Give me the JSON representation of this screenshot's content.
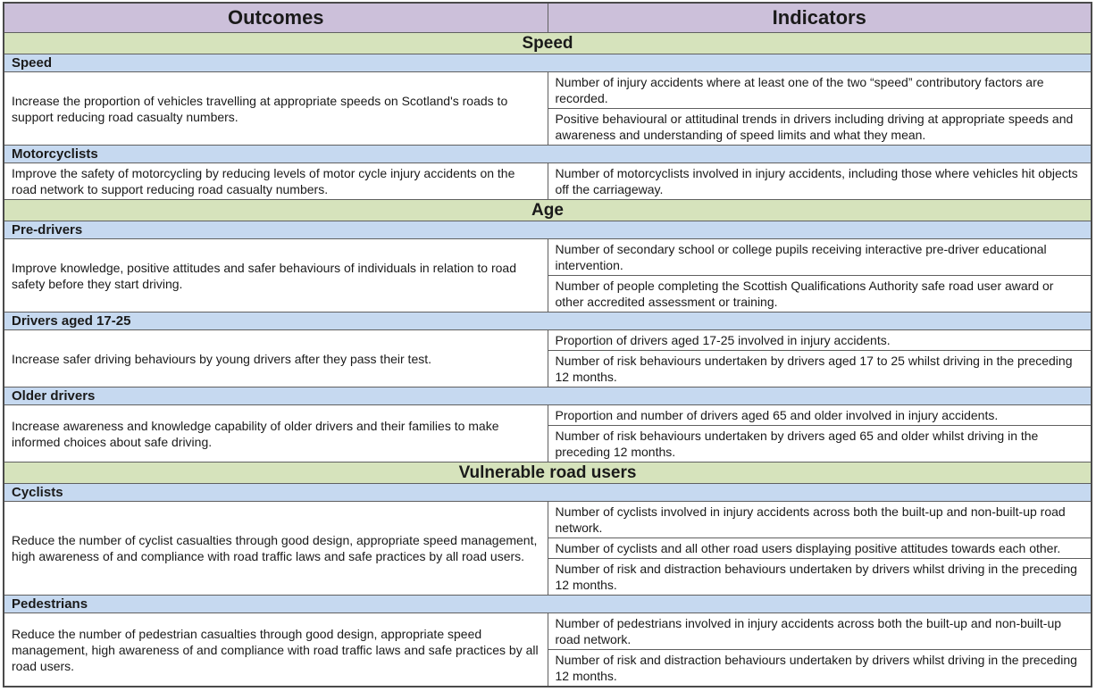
{
  "table": {
    "columns": [
      "Outcomes",
      "Indicators"
    ],
    "colors": {
      "header_bg": "#CCC0DA",
      "section_bg": "#D6E3BC",
      "subheader_bg": "#C6D9F0",
      "border": "#606060",
      "outer_border": "#4a4a4a",
      "text": "#1a1a1a"
    },
    "sections": [
      {
        "title": "Speed",
        "groups": [
          {
            "subtitle": "Speed",
            "outcome": "Increase the proportion of vehicles travelling at appropriate speeds on Scotland's roads to support reducing road casualty numbers.",
            "indicators": [
              "Number of injury accidents where at least one of the two “speed” contributory factors are recorded.",
              "Positive behavioural or attitudinal trends in drivers including driving at appropriate speeds and awareness and understanding of speed limits and what they mean."
            ]
          },
          {
            "subtitle": "Motorcyclists",
            "outcome": "Improve the safety of motorcycling by reducing levels of motor cycle injury accidents on the road network to support reducing road casualty numbers.",
            "indicators": [
              "Number of motorcyclists involved in injury accidents, including those where vehicles hit objects off the carriageway."
            ]
          }
        ]
      },
      {
        "title": "Age",
        "groups": [
          {
            "subtitle": "Pre-drivers",
            "outcome": "Improve knowledge, positive attitudes and safer behaviours of individuals in relation to road safety before they start driving.",
            "indicators": [
              "Number of secondary school or college pupils receiving interactive pre-driver educational intervention.",
              "Number of people completing the Scottish Qualifications Authority safe road user award or other accredited assessment or training."
            ]
          },
          {
            "subtitle": "Drivers aged 17-25",
            "outcome": "Increase safer driving behaviours by young drivers after they pass their test.",
            "indicators": [
              "Proportion of drivers aged 17-25 involved in injury accidents.",
              "Number of risk behaviours undertaken by drivers aged 17 to 25 whilst driving in the preceding 12 months."
            ]
          },
          {
            "subtitle": "Older drivers",
            "outcome": "Increase awareness and knowledge capability of older drivers and their families to make informed choices about safe driving.",
            "indicators": [
              "Proportion and number of drivers aged 65 and older involved in injury accidents.",
              "Number of risk behaviours undertaken by drivers aged 65 and older whilst driving in the preceding 12 months."
            ]
          }
        ]
      },
      {
        "title": "Vulnerable road users",
        "groups": [
          {
            "subtitle": "Cyclists",
            "outcome": "Reduce the number of cyclist casualties through good design, appropriate speed management, high awareness of and compliance with road traffic laws and safe practices by all road users.",
            "indicators": [
              "Number of cyclists involved in injury accidents across both the built-up and non-built-up road network.",
              "Number of cyclists and all other road users displaying positive attitudes towards each other.",
              "Number of risk and distraction behaviours undertaken by drivers whilst driving in the preceding 12 months."
            ]
          },
          {
            "subtitle": "Pedestrians",
            "outcome": "Reduce the number of pedestrian casualties through good design, appropriate speed management, high awareness of and compliance with road traffic laws and safe practices by all road users.",
            "indicators": [
              "Number of pedestrians involved in injury accidents across both the built-up and non-built-up road network.",
              "Number of risk and distraction behaviours undertaken by drivers whilst driving in the preceding 12 months."
            ]
          }
        ]
      }
    ]
  }
}
